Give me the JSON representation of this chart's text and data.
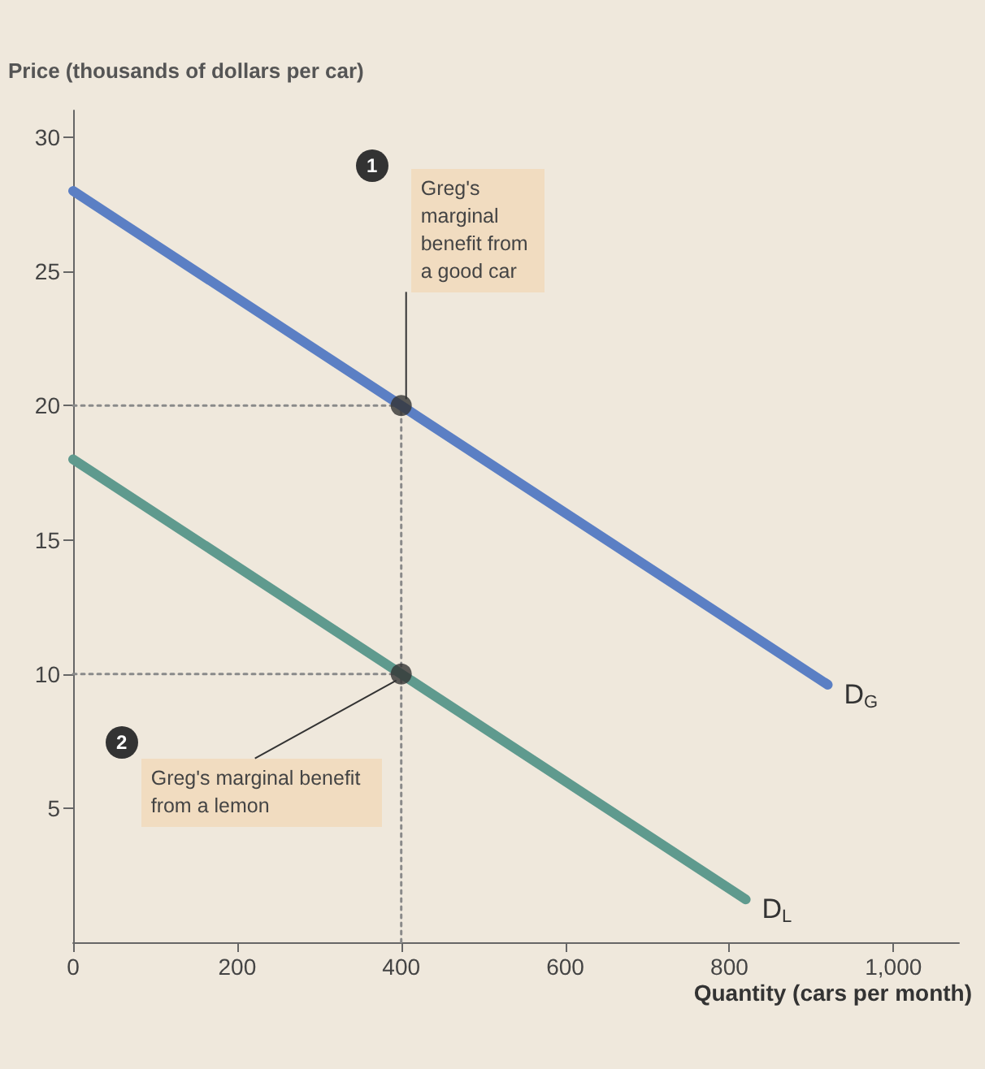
{
  "chart_data": {
    "type": "line",
    "ylabel": "Price (thousands of dollars per car)",
    "xlabel": "Quantity (cars per month)",
    "xlim": [
      0,
      1080
    ],
    "ylim": [
      0,
      31
    ],
    "xticks": [
      {
        "value": 0,
        "label": "0"
      },
      200,
      400,
      600,
      800,
      {
        "value": 1000,
        "label": "1,000"
      }
    ],
    "yticks": [
      5,
      10,
      15,
      20,
      25,
      30
    ],
    "grid": false,
    "marker": "none",
    "series": [
      {
        "name": "D$_{G}$",
        "color": "#5b7fc4",
        "x": [
          0,
          920
        ],
        "values": [
          28,
          9.6
        ]
      },
      {
        "name": "D$_{L}$",
        "color": "#5f9a8e",
        "x": [
          0,
          820
        ],
        "values": [
          18,
          1.6
        ]
      },
      {
        "type": "line",
        "line_style": "dotted",
        "color": "#8a8a8a",
        "x": [
          0,
          400
        ],
        "values": [
          20,
          20
        ]
      },
      {
        "type": "line",
        "line_style": "dotted",
        "color": "#8a8a8a",
        "x": [
          0,
          400
        ],
        "values": [
          10,
          10
        ]
      },
      {
        "type": "line",
        "line_style": "dotted",
        "color": "#8a8a8a",
        "x": [
          400,
          400
        ],
        "values": [
          0,
          20
        ]
      },
      {
        "type": "scatter",
        "marker": "circle",
        "color": "#333333",
        "x": [
          400,
          400
        ],
        "values": [
          20,
          10
        ]
      }
    ],
    "annotations": [
      {
        "text": "Greg's marginal benefit from a good car",
        "x": 400,
        "y": 20
      },
      "1",
      {
        "text": "Greg's marginal benefit from a lemon",
        "x": 400,
        "y": 10
      },
      "2"
    ]
  }
}
